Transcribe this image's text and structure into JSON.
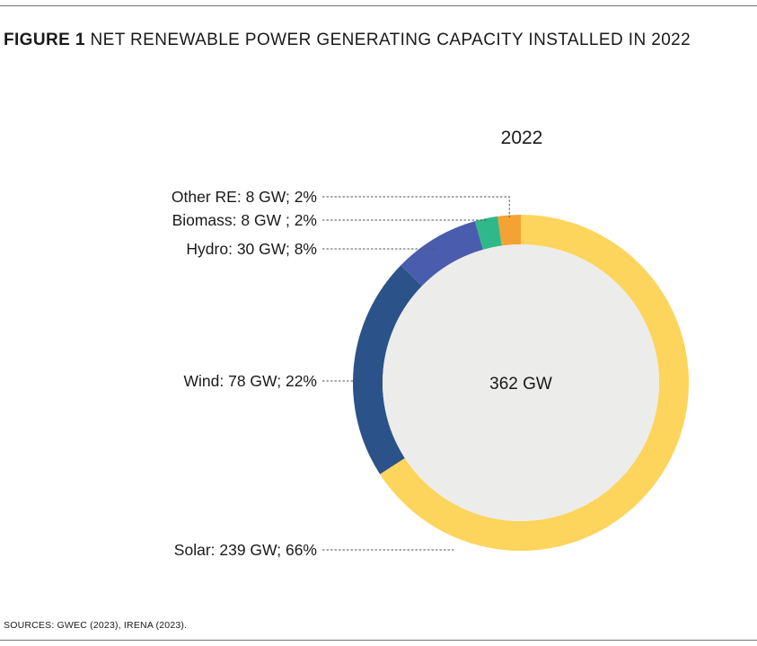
{
  "figure": {
    "number": "FIGURE 1",
    "title": "NET RENEWABLE POWER GENERATING CAPACITY INSTALLED IN 2022"
  },
  "sources": "SOURCES: GWEC (2023), IRENA (2023).",
  "chart_data": {
    "type": "pie",
    "subtitle": "2022",
    "total_label": "362 GW",
    "unit": "GW",
    "colors": {
      "inner_fill": "#ececea",
      "leader_line": "#555555"
    },
    "slices": [
      {
        "name": "Solar",
        "value": 239,
        "percent": 66,
        "color": "#fdd45c",
        "label": "Solar: 239 GW; 66%"
      },
      {
        "name": "Wind",
        "value": 78,
        "percent": 22,
        "color": "#2b5289",
        "label": "Wind: 78 GW; 22%"
      },
      {
        "name": "Hydro",
        "value": 30,
        "percent": 8,
        "color": "#4a5cad",
        "label": "Hydro: 30 GW; 8%"
      },
      {
        "name": "Biomass",
        "value": 8,
        "percent": 2,
        "color": "#2fb98a",
        "label": "Biomass: 8 GW ; 2%"
      },
      {
        "name": "Other RE",
        "value": 8,
        "percent": 2,
        "color": "#f4a233",
        "label": "Other RE: 8 GW; 2%"
      }
    ]
  }
}
